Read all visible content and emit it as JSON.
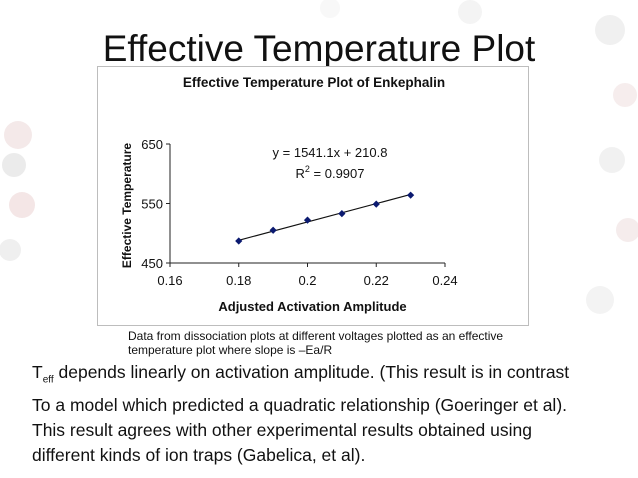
{
  "slide": {
    "title": "Effective Temperature Plot",
    "caption_lines": [
      "Data from dissociation plots at different voltages plotted as an effective",
      "temperature plot where slope is –Ea/R"
    ],
    "body": {
      "teff_main": "T",
      "teff_sub": "eff",
      "line1_rest": " depends linearly on activation amplitude. (This result is in contrast",
      "line2": "To a model which predicted a quadratic relationship (Goeringer et al).",
      "line3": "This result agrees with other experimental results obtained using",
      "line4": "different kinds of ion traps (Gabelica, et al)."
    }
  },
  "chart_data": {
    "type": "scatter",
    "title": "Effective Temperature Plot of Enkephalin",
    "xlabel": "Adjusted Activation Amplitude",
    "ylabel": "Effective Temperature",
    "xlim": [
      0.16,
      0.24
    ],
    "ylim": [
      450,
      650
    ],
    "xticks": [
      "0.16",
      "0.18",
      "0.2",
      "0.22",
      "0.24"
    ],
    "xtick_values": [
      0.16,
      0.18,
      0.2,
      0.22,
      0.24
    ],
    "yticks": [
      "450",
      "550",
      "650"
    ],
    "ytick_values": [
      450,
      550,
      650
    ],
    "grid": false,
    "legend": "none",
    "series": [
      {
        "x": [
          0.18,
          0.19,
          0.2,
          0.21,
          0.22,
          0.23
        ],
        "y": [
          487,
          505,
          522,
          533,
          549,
          564
        ],
        "marker": "diamond",
        "color": "#0b1a70"
      }
    ],
    "trendline": {
      "slope": 1541.1,
      "intercept": 210.8,
      "x_range": [
        0.18,
        0.23
      ],
      "equation": "y = 1541.1x + 210.8",
      "r2_main": "R",
      "r2_sup": "2",
      "r2_rest": " = 0.9907"
    }
  }
}
